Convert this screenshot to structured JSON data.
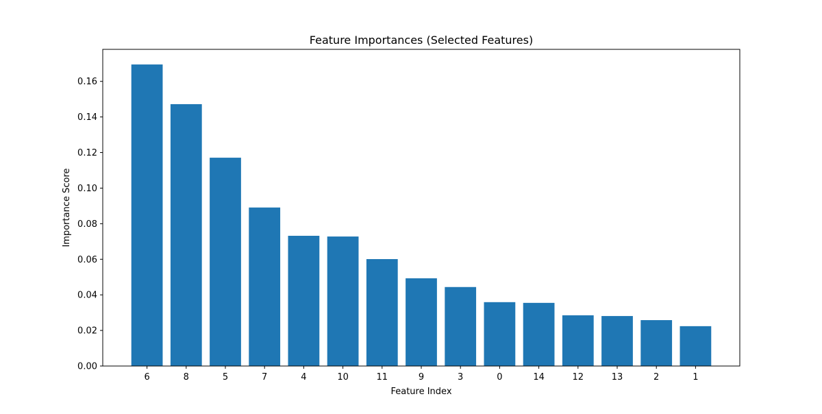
{
  "chart_data": {
    "type": "bar",
    "title": "Feature Importances (Selected Features)",
    "xlabel": "Feature Index",
    "ylabel": "Importance Score",
    "categories": [
      "6",
      "8",
      "5",
      "7",
      "4",
      "10",
      "11",
      "9",
      "3",
      "0",
      "14",
      "12",
      "13",
      "2",
      "1"
    ],
    "values": [
      0.1695,
      0.1472,
      0.1171,
      0.0891,
      0.0732,
      0.0728,
      0.0601,
      0.0493,
      0.0444,
      0.0359,
      0.0355,
      0.0285,
      0.0281,
      0.0258,
      0.0224
    ],
    "ylim": [
      0,
      0.178
    ],
    "yticks": [
      0.0,
      0.02,
      0.04,
      0.06,
      0.08,
      0.1,
      0.12,
      0.14,
      0.16
    ],
    "ytick_labels": [
      "0.00",
      "0.02",
      "0.04",
      "0.06",
      "0.08",
      "0.10",
      "0.12",
      "0.14",
      "0.16"
    ],
    "grid": false,
    "bar_color": "#1f77b4"
  }
}
